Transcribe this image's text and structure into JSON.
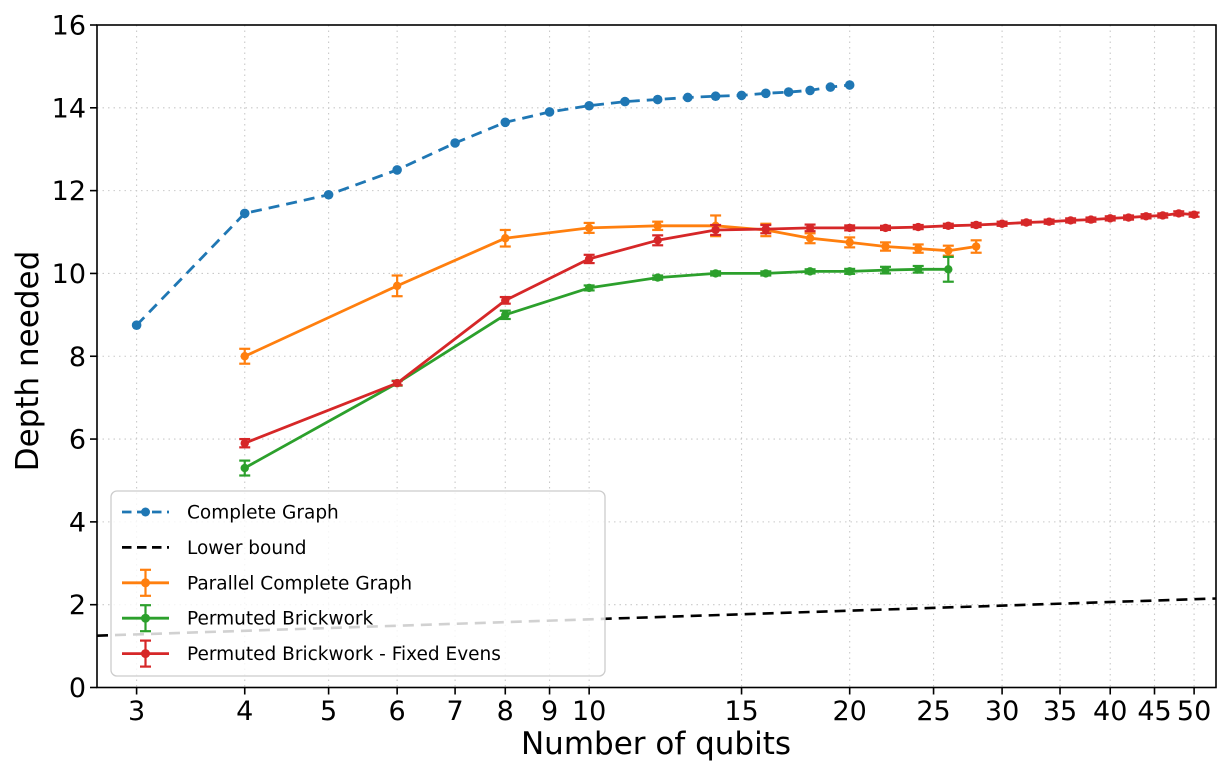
{
  "chart_data": {
    "type": "line",
    "title": "",
    "xlabel": "Number of qubits",
    "ylabel": "Depth needed",
    "x_scale": "log",
    "xlim": [
      2.7,
      53
    ],
    "ylim": [
      0,
      16
    ],
    "x_ticks": [
      3,
      4,
      5,
      6,
      7,
      8,
      9,
      10,
      15,
      20,
      25,
      30,
      35,
      40,
      45,
      50
    ],
    "y_ticks": [
      0,
      2,
      4,
      6,
      8,
      10,
      12,
      14,
      16
    ],
    "grid": true,
    "legend_position": "lower-left",
    "colors": {
      "grid": "#c9c9c9",
      "spine": "#000000",
      "text": "#000000",
      "legend_border": "#cccccc"
    },
    "series": [
      {
        "name": "Complete Graph",
        "color": "#1f77b4",
        "style": "dashed",
        "marker": "circle",
        "x": [
          3,
          4,
          5,
          6,
          7,
          8,
          9,
          10,
          11,
          12,
          13,
          14,
          15,
          16,
          17,
          18,
          19,
          20
        ],
        "y": [
          8.75,
          11.45,
          11.9,
          12.5,
          13.15,
          13.65,
          13.9,
          14.05,
          14.15,
          14.2,
          14.25,
          14.28,
          14.3,
          14.35,
          14.38,
          14.42,
          14.5,
          14.55
        ]
      },
      {
        "name": "Lower bound",
        "color": "#000000",
        "style": "dashed",
        "marker": "none",
        "x": [
          2.7,
          53
        ],
        "y": [
          1.25,
          2.15
        ]
      },
      {
        "name": "Parallel Complete Graph",
        "color": "#ff7f0e",
        "style": "solid",
        "marker": "circle",
        "x": [
          4,
          6,
          8,
          10,
          12,
          14,
          16,
          18,
          20,
          22,
          24,
          26,
          28
        ],
        "y": [
          8.0,
          9.7,
          10.85,
          11.1,
          11.15,
          11.15,
          11.05,
          10.85,
          10.75,
          10.65,
          10.6,
          10.55,
          10.65
        ],
        "yerr": [
          0.18,
          0.25,
          0.2,
          0.12,
          0.1,
          0.25,
          0.15,
          0.12,
          0.12,
          0.1,
          0.1,
          0.12,
          0.15
        ]
      },
      {
        "name": "Permuted Brickwork",
        "color": "#2ca02c",
        "style": "solid",
        "marker": "circle",
        "x": [
          4,
          6,
          8,
          10,
          12,
          14,
          16,
          18,
          20,
          22,
          24,
          26
        ],
        "y": [
          5.3,
          7.35,
          9.0,
          9.65,
          9.9,
          10.0,
          10.0,
          10.05,
          10.05,
          10.08,
          10.1,
          10.1
        ],
        "yerr": [
          0.18,
          0.06,
          0.1,
          0.06,
          0.05,
          0.05,
          0.05,
          0.05,
          0.06,
          0.08,
          0.08,
          0.3
        ]
      },
      {
        "name": "Permuted Brickwork - Fixed Evens",
        "color": "#d62728",
        "style": "solid",
        "marker": "circle",
        "x": [
          4,
          6,
          8,
          10,
          12,
          14,
          16,
          18,
          20,
          22,
          24,
          26,
          28,
          30,
          32,
          34,
          36,
          38,
          40,
          42,
          44,
          46,
          48,
          50
        ],
        "y": [
          5.9,
          7.35,
          9.35,
          10.35,
          10.8,
          11.05,
          11.07,
          11.1,
          11.1,
          11.1,
          11.12,
          11.15,
          11.17,
          11.2,
          11.23,
          11.25,
          11.28,
          11.3,
          11.33,
          11.35,
          11.38,
          11.4,
          11.45,
          11.42
        ],
        "yerr": [
          0.1,
          0.05,
          0.08,
          0.1,
          0.12,
          0.12,
          0.1,
          0.08,
          0.06,
          0.05,
          0.05,
          0.05,
          0.05,
          0.05,
          0.05,
          0.05,
          0.05,
          0.05,
          0.05,
          0.05,
          0.05,
          0.05,
          0.05,
          0.05
        ]
      }
    ]
  }
}
